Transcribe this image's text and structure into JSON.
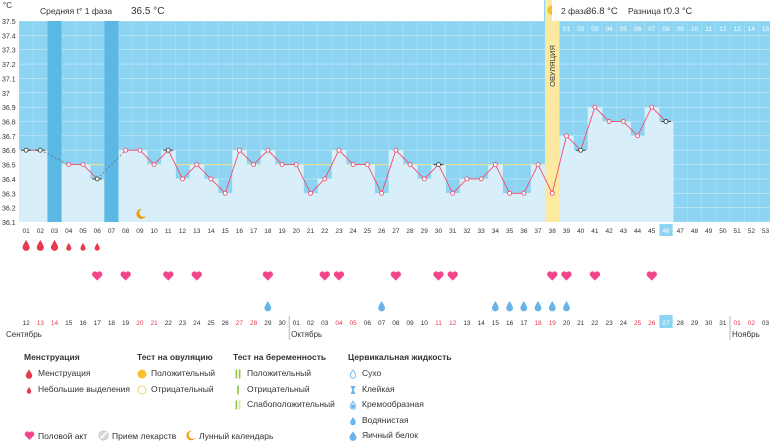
{
  "chart_data": {
    "type": "line",
    "yunit": "°C",
    "yticks": [
      "36.1",
      "36.2",
      "36.3",
      "36.4",
      "36.5",
      "36.6",
      "36.7",
      "36.8",
      "36.9",
      "37",
      "37.1",
      "37.2",
      "37.3",
      "37.4",
      "37.5"
    ],
    "ylim": [
      36.1,
      37.5
    ],
    "phase1_label": "Средняя t° 1 фаза",
    "phase1_value": "36.5 °C",
    "phase2_label": "2 фаза",
    "phase2_value": "36.8 °C",
    "diff_label": "Разница t°",
    "diff_value": "0.3 °C",
    "ovulation_label": "ОВУЛЯЦИЯ",
    "ovulation_day": 38,
    "coverline": 36.5,
    "cycle_days": [
      "01",
      "02",
      "03",
      "04",
      "05",
      "06",
      "07",
      "08",
      "09",
      "10",
      "11",
      "12",
      "13",
      "14",
      "15",
      "16",
      "17",
      "18",
      "19",
      "20",
      "21",
      "22",
      "23",
      "24",
      "25",
      "26",
      "27",
      "28",
      "29",
      "30",
      "31",
      "32",
      "33",
      "34",
      "35",
      "36",
      "37",
      "38",
      "39",
      "40",
      "41",
      "42",
      "43",
      "44",
      "45",
      "46",
      "47",
      "48",
      "49",
      "50",
      "51",
      "52",
      "53"
    ],
    "phase2_days": [
      "01",
      "02",
      "03",
      "04",
      "05",
      "06",
      "07",
      "08",
      "09",
      "10",
      "11",
      "12",
      "13",
      "14",
      "15"
    ],
    "today_day": "46",
    "temperatures": [
      36.6,
      36.6,
      null,
      36.5,
      36.5,
      36.4,
      null,
      36.6,
      36.6,
      36.5,
      36.6,
      36.4,
      36.5,
      36.4,
      36.3,
      36.6,
      36.5,
      36.6,
      36.5,
      36.5,
      36.3,
      36.4,
      36.6,
      36.5,
      36.5,
      36.3,
      36.6,
      36.5,
      36.4,
      36.5,
      36.3,
      36.4,
      36.4,
      36.5,
      36.3,
      36.3,
      36.5,
      36.3,
      36.7,
      36.6,
      36.9,
      36.8,
      36.8,
      36.7,
      36.9,
      36.8
    ],
    "excluded_days": [
      1,
      2,
      6,
      11,
      30,
      40,
      46
    ],
    "menstruation": [
      1,
      2,
      3
    ],
    "light_spotting": [
      4,
      5,
      6
    ],
    "intercourse": [
      6,
      8,
      11,
      13,
      18,
      22,
      23,
      27,
      30,
      31,
      38,
      39,
      41,
      45
    ],
    "egg_white": [
      18,
      26,
      34,
      35,
      36,
      37,
      38,
      39
    ],
    "moon_day": 9,
    "dates": [
      {
        "d": "12",
        "red": false
      },
      {
        "d": "13",
        "red": true
      },
      {
        "d": "14",
        "red": true
      },
      {
        "d": "15",
        "red": false
      },
      {
        "d": "16",
        "red": false
      },
      {
        "d": "17",
        "red": false
      },
      {
        "d": "18",
        "red": false
      },
      {
        "d": "19",
        "red": false
      },
      {
        "d": "20",
        "red": true
      },
      {
        "d": "21",
        "red": true
      },
      {
        "d": "22",
        "red": false
      },
      {
        "d": "23",
        "red": false
      },
      {
        "d": "24",
        "red": false
      },
      {
        "d": "25",
        "red": false
      },
      {
        "d": "26",
        "red": false
      },
      {
        "d": "27",
        "red": true
      },
      {
        "d": "28",
        "red": true
      },
      {
        "d": "29",
        "red": false
      },
      {
        "d": "30",
        "red": false
      },
      {
        "d": "01",
        "red": false
      },
      {
        "d": "02",
        "red": false
      },
      {
        "d": "03",
        "red": false
      },
      {
        "d": "04",
        "red": true
      },
      {
        "d": "05",
        "red": true
      },
      {
        "d": "06",
        "red": false
      },
      {
        "d": "07",
        "red": false
      },
      {
        "d": "08",
        "red": false
      },
      {
        "d": "09",
        "red": false
      },
      {
        "d": "10",
        "red": false
      },
      {
        "d": "11",
        "red": true
      },
      {
        "d": "12",
        "red": true
      },
      {
        "d": "13",
        "red": false
      },
      {
        "d": "14",
        "red": false
      },
      {
        "d": "15",
        "red": false
      },
      {
        "d": "16",
        "red": false
      },
      {
        "d": "17",
        "red": false
      },
      {
        "d": "18",
        "red": true
      },
      {
        "d": "19",
        "red": true
      },
      {
        "d": "20",
        "red": false
      },
      {
        "d": "21",
        "red": false
      },
      {
        "d": "22",
        "red": false
      },
      {
        "d": "23",
        "red": false
      },
      {
        "d": "24",
        "red": false
      },
      {
        "d": "25",
        "red": true
      },
      {
        "d": "26",
        "red": true
      },
      {
        "d": "27",
        "red": false
      },
      {
        "d": "28",
        "red": false
      },
      {
        "d": "29",
        "red": false
      },
      {
        "d": "30",
        "red": false
      },
      {
        "d": "31",
        "red": false
      },
      {
        "d": "01",
        "red": true
      },
      {
        "d": "02",
        "red": true
      },
      {
        "d": "03",
        "red": false
      }
    ],
    "today_date_index": 45,
    "months": [
      {
        "label": "Сентябрь",
        "start": 0
      },
      {
        "label": "Октябрь",
        "start": 19
      },
      {
        "label": "Ноябрь",
        "start": 50
      }
    ],
    "colors": {
      "past_bg": "#d8eff9",
      "future_bg": "#8dd4f2",
      "line": "#f04a6e",
      "point": "#ea5473",
      "ovulation": "#fbeaa0",
      "drop": "#e83a4e",
      "heart": "#f2468a",
      "egg": "#6ab3e8"
    }
  },
  "legend": {
    "menstruation": {
      "title": "Менструация",
      "items": [
        "Менструация",
        "Небольшие выделения"
      ]
    },
    "ovulation_test": {
      "title": "Тест на овуляцию",
      "items": [
        "Положительный",
        "Отрицательный"
      ]
    },
    "pregnancy_test": {
      "title": "Тест на беременность",
      "items": [
        "Положительный",
        "Отрицательный",
        "Слабоположительный"
      ]
    },
    "cervical": {
      "title": "Цервикальная жидкость",
      "items": [
        "Сухо",
        "Клейкая",
        "Кремообразная",
        "Водянистая",
        "Яичный белок"
      ]
    },
    "bottom": {
      "intercourse": "Половой акт",
      "medication": "Прием лекарств",
      "lunar": "Лунный календарь"
    }
  }
}
